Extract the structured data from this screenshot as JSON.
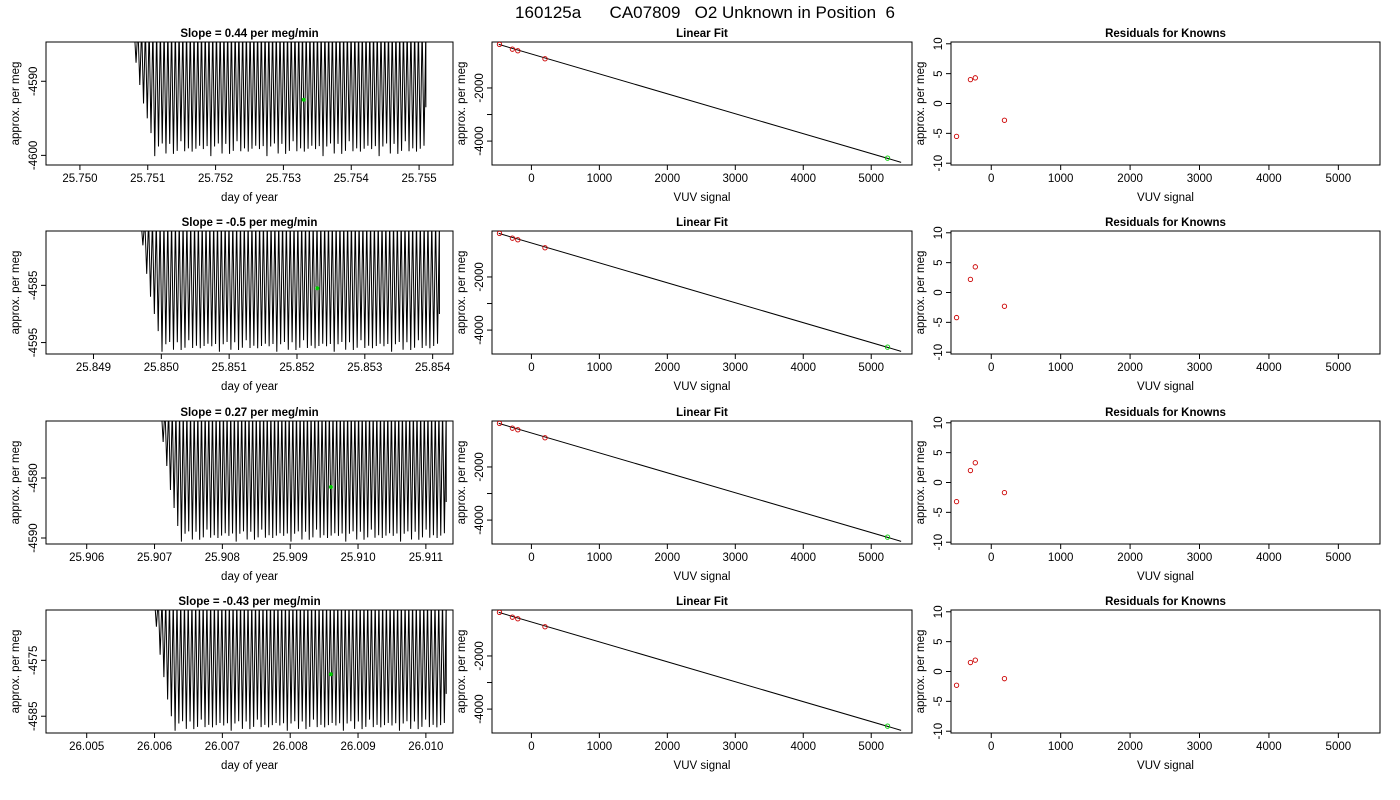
{
  "figure_title": "160125a      CA07809   O2 Unknown in Position  6",
  "colors": {
    "trace": "#000000",
    "highlight": "#00cc00",
    "residual_point": "#cc0000",
    "axes": "#000000"
  },
  "chart_data": [
    {
      "type": "line",
      "row": 0,
      "title": "Slope =  0.44  per meg/min",
      "xlabel": "day of year",
      "ylabel": "approx. per meg",
      "xlim": [
        25.7495,
        25.7555
      ],
      "ylim": [
        -4601.3,
        -4584.7
      ],
      "xticks": [
        25.75,
        25.751,
        25.752,
        25.753,
        25.754,
        25.755
      ],
      "xtick_labels": [
        "25.750",
        "25.751",
        "25.752",
        "25.753",
        "25.754",
        "25.755"
      ],
      "yticks": [
        -4600,
        -4590
      ],
      "ytick_labels": [
        "-4600",
        "-4590"
      ],
      "trace": {
        "x_start": 25.7508,
        "x_end": 25.7551,
        "cycles": 78,
        "low_envelope": -4599.5,
        "high_envelope": -4584.7,
        "first_low_values": [
          -4587.5,
          -4590.5,
          -4593,
          -4595,
          -4597
        ]
      },
      "highlight_point": {
        "x": 25.7533,
        "y": -4592.5
      }
    },
    {
      "type": "scatter",
      "row": 0,
      "title": "Linear Fit",
      "xlabel": "VUV signal",
      "ylabel": "approx. per meg",
      "xlim": [
        -580,
        5600
      ],
      "ylim": [
        -4900,
        -270
      ],
      "xticks": [
        0,
        1000,
        2000,
        3000,
        4000,
        5000
      ],
      "xtick_labels": [
        "0",
        "1000",
        "2000",
        "3000",
        "4000",
        "5000"
      ],
      "yticks": [
        -4000,
        -3000,
        -2000
      ],
      "ytick_labels": [
        "-4000",
        "",
        "-2000"
      ],
      "fit_line": {
        "x": [
          -480,
          5440
        ],
        "y": [
          -360,
          -4800
        ]
      },
      "known_points": {
        "x": [
          -470,
          -280,
          -200,
          200
        ],
        "y": [
          -360,
          -540,
          -600,
          -900
        ]
      },
      "unknown_point": {
        "x": 5240,
        "y": -4640
      }
    },
    {
      "type": "scatter",
      "row": 0,
      "title": "Residuals for Knowns",
      "xlabel": "VUV signal",
      "ylabel": "approx. per meg",
      "xlim": [
        -580,
        5600
      ],
      "ylim": [
        -10.3,
        10.3
      ],
      "xticks": [
        0,
        1000,
        2000,
        3000,
        4000,
        5000
      ],
      "xtick_labels": [
        "0",
        "1000",
        "2000",
        "3000",
        "4000",
        "5000"
      ],
      "yticks": [
        -10,
        -5,
        0,
        5,
        10
      ],
      "ytick_labels": [
        "-10",
        "-5",
        "0",
        "5",
        "10"
      ],
      "points": {
        "x": [
          -500,
          -300,
          -230,
          190
        ],
        "y": [
          -5.5,
          4.0,
          4.3,
          -2.8
        ]
      }
    },
    {
      "type": "line",
      "row": 1,
      "title": "Slope =  -0.5  per meg/min",
      "xlabel": "day of year",
      "ylabel": "approx. per meg",
      "xlim": [
        25.8483,
        25.8543
      ],
      "ylim": [
        -4597.0,
        -4575.5
      ],
      "xticks": [
        25.849,
        25.85,
        25.851,
        25.852,
        25.853,
        25.854
      ],
      "xtick_labels": [
        "25.849",
        "25.850",
        "25.851",
        "25.852",
        "25.853",
        "25.854"
      ],
      "yticks": [
        -4595,
        -4585
      ],
      "ytick_labels": [
        "-4595",
        "-4585"
      ],
      "trace": {
        "x_start": 25.8497,
        "x_end": 25.8541,
        "cycles": 78,
        "low_envelope": -4596.0,
        "high_envelope": -4575.5,
        "first_low_values": [
          -4578,
          -4583,
          -4587,
          -4590,
          -4593
        ]
      },
      "highlight_point": {
        "x": 25.8523,
        "y": -4585.5
      }
    },
    {
      "type": "scatter",
      "row": 1,
      "title": "Linear Fit",
      "xlabel": "VUV signal",
      "ylabel": "approx. per meg",
      "xlim": [
        -580,
        5600
      ],
      "ylim": [
        -4900,
        -270
      ],
      "xticks": [
        0,
        1000,
        2000,
        3000,
        4000,
        5000
      ],
      "xtick_labels": [
        "0",
        "1000",
        "2000",
        "3000",
        "4000",
        "5000"
      ],
      "yticks": [
        -4000,
        -3000,
        -2000
      ],
      "ytick_labels": [
        "-4000",
        "",
        "-2000"
      ],
      "fit_line": {
        "x": [
          -480,
          5440
        ],
        "y": [
          -360,
          -4800
        ]
      },
      "known_points": {
        "x": [
          -470,
          -280,
          -200,
          200
        ],
        "y": [
          -360,
          -540,
          -600,
          -900
        ]
      },
      "unknown_point": {
        "x": 5240,
        "y": -4640
      }
    },
    {
      "type": "scatter",
      "row": 1,
      "title": "Residuals for Knowns",
      "xlabel": "VUV signal",
      "ylabel": "approx. per meg",
      "xlim": [
        -580,
        5600
      ],
      "ylim": [
        -10.3,
        10.3
      ],
      "xticks": [
        0,
        1000,
        2000,
        3000,
        4000,
        5000
      ],
      "xtick_labels": [
        "0",
        "1000",
        "2000",
        "3000",
        "4000",
        "5000"
      ],
      "yticks": [
        -10,
        -5,
        0,
        5,
        10
      ],
      "ytick_labels": [
        "-10",
        "-5",
        "0",
        "5",
        "10"
      ],
      "points": {
        "x": [
          -500,
          -300,
          -230,
          190
        ],
        "y": [
          -4.2,
          2.2,
          4.3,
          -2.3
        ]
      }
    },
    {
      "type": "line",
      "row": 2,
      "title": "Slope =  0.27  per meg/min",
      "xlabel": "day of year",
      "ylabel": "approx. per meg",
      "xlim": [
        25.9054,
        25.9114
      ],
      "ylim": [
        -4591.0,
        -4570.5
      ],
      "xticks": [
        25.906,
        25.907,
        25.908,
        25.909,
        25.91,
        25.911
      ],
      "xtick_labels": [
        "25.906",
        "25.907",
        "25.908",
        "25.909",
        "25.910",
        "25.911"
      ],
      "yticks": [
        -4590,
        -4580
      ],
      "ytick_labels": [
        "-4590",
        "-4580"
      ],
      "trace": {
        "x_start": 25.9071,
        "x_end": 25.9113,
        "cycles": 78,
        "low_envelope": -4590.0,
        "high_envelope": -4570.5,
        "first_low_values": [
          -4574,
          -4578,
          -4582,
          -4585,
          -4588
        ]
      },
      "highlight_point": {
        "x": 25.9096,
        "y": -4581.5
      }
    },
    {
      "type": "scatter",
      "row": 2,
      "title": "Linear Fit",
      "xlabel": "VUV signal",
      "ylabel": "approx. per meg",
      "xlim": [
        -580,
        5600
      ],
      "ylim": [
        -4900,
        -270
      ],
      "xticks": [
        0,
        1000,
        2000,
        3000,
        4000,
        5000
      ],
      "xtick_labels": [
        "0",
        "1000",
        "2000",
        "3000",
        "4000",
        "5000"
      ],
      "yticks": [
        -4000,
        -3000,
        -2000
      ],
      "ytick_labels": [
        "-4000",
        "",
        "-2000"
      ],
      "fit_line": {
        "x": [
          -480,
          5440
        ],
        "y": [
          -360,
          -4800
        ]
      },
      "known_points": {
        "x": [
          -470,
          -280,
          -200,
          200
        ],
        "y": [
          -360,
          -540,
          -600,
          -900
        ]
      },
      "unknown_point": {
        "x": 5240,
        "y": -4640
      }
    },
    {
      "type": "scatter",
      "row": 2,
      "title": "Residuals for Knowns",
      "xlabel": "VUV signal",
      "ylabel": "approx. per meg",
      "xlim": [
        -580,
        5600
      ],
      "ylim": [
        -10.3,
        10.3
      ],
      "xticks": [
        0,
        1000,
        2000,
        3000,
        4000,
        5000
      ],
      "xtick_labels": [
        "0",
        "1000",
        "2000",
        "3000",
        "4000",
        "5000"
      ],
      "yticks": [
        -10,
        -5,
        0,
        5,
        10
      ],
      "ytick_labels": [
        "-10",
        "-5",
        "0",
        "5",
        "10"
      ],
      "points": {
        "x": [
          -500,
          -300,
          -230,
          190
        ],
        "y": [
          -3.2,
          2.0,
          3.3,
          -1.7
        ]
      }
    },
    {
      "type": "line",
      "row": 3,
      "title": "Slope =  -0.43  per meg/min",
      "xlabel": "day of year",
      "ylabel": "approx. per meg",
      "xlim": [
        26.0044,
        26.0104
      ],
      "ylim": [
        -4588.0,
        -4566.0
      ],
      "xticks": [
        26.005,
        26.006,
        26.007,
        26.008,
        26.009,
        26.01
      ],
      "xtick_labels": [
        "26.005",
        "26.006",
        "26.007",
        "26.008",
        "26.009",
        "26.010"
      ],
      "yticks": [
        -4585,
        -4575
      ],
      "ytick_labels": [
        "-4585",
        "-4575"
      ],
      "trace": {
        "x_start": 26.006,
        "x_end": 26.0103,
        "cycles": 78,
        "low_envelope": -4587.0,
        "high_envelope": -4566.0,
        "first_low_values": [
          -4569,
          -4574,
          -4578,
          -4582,
          -4585
        ]
      },
      "highlight_point": {
        "x": 26.0086,
        "y": -4577.5
      }
    },
    {
      "type": "scatter",
      "row": 3,
      "title": "Linear Fit",
      "xlabel": "VUV signal",
      "ylabel": "approx. per meg",
      "xlim": [
        -580,
        5600
      ],
      "ylim": [
        -4900,
        -270
      ],
      "xticks": [
        0,
        1000,
        2000,
        3000,
        4000,
        5000
      ],
      "xtick_labels": [
        "0",
        "1000",
        "2000",
        "3000",
        "4000",
        "5000"
      ],
      "yticks": [
        -4000,
        -3000,
        -2000
      ],
      "ytick_labels": [
        "-4000",
        "",
        "-2000"
      ],
      "fit_line": {
        "x": [
          -480,
          5440
        ],
        "y": [
          -360,
          -4800
        ]
      },
      "known_points": {
        "x": [
          -470,
          -280,
          -200,
          200
        ],
        "y": [
          -360,
          -540,
          -600,
          -900
        ]
      },
      "unknown_point": {
        "x": 5240,
        "y": -4640
      }
    },
    {
      "type": "scatter",
      "row": 3,
      "title": "Residuals for Knowns",
      "xlabel": "VUV signal",
      "ylabel": "approx. per meg",
      "xlim": [
        -580,
        5600
      ],
      "ylim": [
        -10.3,
        10.3
      ],
      "xticks": [
        0,
        1000,
        2000,
        3000,
        4000,
        5000
      ],
      "xtick_labels": [
        "0",
        "1000",
        "2000",
        "3000",
        "4000",
        "5000"
      ],
      "yticks": [
        -10,
        -5,
        0,
        5,
        10
      ],
      "ytick_labels": [
        "-10",
        "-5",
        "0",
        "5",
        "10"
      ],
      "points": {
        "x": [
          -500,
          -300,
          -230,
          190
        ],
        "y": [
          -2.3,
          1.5,
          1.9,
          -1.2
        ]
      }
    }
  ]
}
